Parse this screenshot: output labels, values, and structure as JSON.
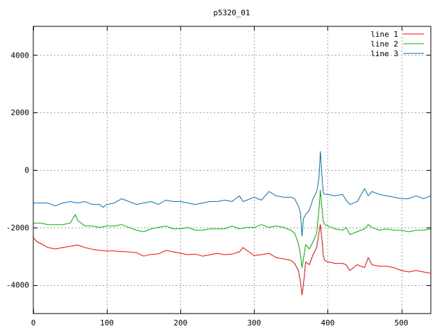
{
  "chart_data": {
    "type": "line",
    "title": "p5320_01",
    "xlabel": "",
    "ylabel": "",
    "xlim": [
      0,
      540
    ],
    "ylim": [
      -5000,
      5000
    ],
    "xticks": [
      0,
      100,
      200,
      300,
      400,
      500
    ],
    "yticks": [
      -4000,
      -2000,
      0,
      2000,
      4000
    ],
    "grid": true,
    "legend_position": "top-right",
    "series": [
      {
        "name": "line 1",
        "color": "#ff0000",
        "x": [
          0,
          5,
          10,
          20,
          30,
          40,
          50,
          60,
          70,
          80,
          90,
          100,
          110,
          120,
          130,
          140,
          150,
          160,
          170,
          180,
          190,
          200,
          210,
          220,
          230,
          240,
          250,
          260,
          270,
          280,
          285,
          290,
          300,
          310,
          320,
          330,
          340,
          350,
          355,
          360,
          363,
          365,
          367,
          370,
          375,
          380,
          385,
          388,
          390,
          392,
          394,
          396,
          400,
          410,
          420,
          425,
          430,
          440,
          450,
          455,
          460,
          470,
          480,
          490,
          500,
          510,
          520,
          530,
          540
        ],
        "values": [
          -2350,
          -2500,
          -2560,
          -2700,
          -2750,
          -2700,
          -2660,
          -2610,
          -2700,
          -2760,
          -2800,
          -2820,
          -2820,
          -2840,
          -2850,
          -2880,
          -3000,
          -2940,
          -2920,
          -2800,
          -2850,
          -2900,
          -2950,
          -2930,
          -3000,
          -2950,
          -2900,
          -2950,
          -2930,
          -2850,
          -2700,
          -2800,
          -2980,
          -2950,
          -2900,
          -3050,
          -3100,
          -3150,
          -3250,
          -3500,
          -3900,
          -4350,
          -4000,
          -3200,
          -3300,
          -2950,
          -2700,
          -2200,
          -1900,
          -2400,
          -3000,
          -3150,
          -3200,
          -3250,
          -3250,
          -3300,
          -3500,
          -3300,
          -3400,
          -3050,
          -3300,
          -3350,
          -3350,
          -3400,
          -3500,
          -3550,
          -3500,
          -3550,
          -3600
        ]
      },
      {
        "name": "line 2",
        "color": "#00b000",
        "x": [
          0,
          10,
          20,
          30,
          40,
          50,
          57,
          60,
          65,
          70,
          80,
          90,
          100,
          110,
          120,
          130,
          140,
          150,
          160,
          170,
          180,
          190,
          200,
          210,
          220,
          230,
          240,
          250,
          260,
          270,
          280,
          290,
          300,
          310,
          320,
          330,
          340,
          350,
          355,
          360,
          363,
          365,
          367,
          370,
          375,
          380,
          385,
          388,
          390,
          392,
          394,
          396,
          400,
          410,
          420,
          425,
          430,
          440,
          450,
          455,
          460,
          470,
          480,
          490,
          500,
          510,
          520,
          530,
          540
        ],
        "values": [
          -1850,
          -1850,
          -1900,
          -1900,
          -1900,
          -1850,
          -1550,
          -1750,
          -1850,
          -1950,
          -1950,
          -2000,
          -1950,
          -1950,
          -1900,
          -2000,
          -2100,
          -2150,
          -2050,
          -2000,
          -1950,
          -2050,
          -2050,
          -2000,
          -2100,
          -2100,
          -2050,
          -2050,
          -2050,
          -1950,
          -2050,
          -2000,
          -2000,
          -1900,
          -2000,
          -1950,
          -2000,
          -2100,
          -2200,
          -2550,
          -2950,
          -3400,
          -3100,
          -2600,
          -2750,
          -2500,
          -2200,
          -1400,
          -700,
          -1300,
          -1800,
          -1900,
          -1950,
          -2050,
          -2100,
          -2000,
          -2250,
          -2150,
          -2050,
          -1900,
          -2000,
          -2100,
          -2050,
          -2100,
          -2100,
          -2150,
          -2100,
          -2100,
          -2050
        ]
      },
      {
        "name": "line 3",
        "color": "#0070c0",
        "x": [
          0,
          10,
          20,
          30,
          40,
          50,
          60,
          70,
          80,
          90,
          95,
          100,
          110,
          120,
          130,
          140,
          150,
          160,
          170,
          180,
          190,
          200,
          210,
          220,
          230,
          240,
          250,
          260,
          270,
          280,
          285,
          290,
          300,
          310,
          320,
          330,
          340,
          350,
          355,
          360,
          363,
          365,
          367,
          370,
          375,
          380,
          385,
          388,
          390,
          392,
          394,
          396,
          400,
          410,
          420,
          425,
          430,
          440,
          450,
          455,
          460,
          470,
          480,
          490,
          500,
          510,
          520,
          530,
          540
        ],
        "values": [
          -1150,
          -1150,
          -1150,
          -1250,
          -1150,
          -1100,
          -1150,
          -1100,
          -1200,
          -1200,
          -1300,
          -1200,
          -1150,
          -1000,
          -1100,
          -1200,
          -1150,
          -1100,
          -1200,
          -1050,
          -1100,
          -1100,
          -1150,
          -1200,
          -1150,
          -1100,
          -1100,
          -1050,
          -1100,
          -900,
          -1100,
          -1050,
          -950,
          -1050,
          -750,
          -900,
          -950,
          -950,
          -1000,
          -1250,
          -1500,
          -2300,
          -1700,
          -1550,
          -1400,
          -1000,
          -750,
          -300,
          650,
          -200,
          -800,
          -850,
          -850,
          -900,
          -850,
          -1050,
          -1200,
          -1100,
          -650,
          -900,
          -750,
          -850,
          -900,
          -950,
          -1000,
          -1000,
          -900,
          -1000,
          -900
        ]
      }
    ]
  }
}
